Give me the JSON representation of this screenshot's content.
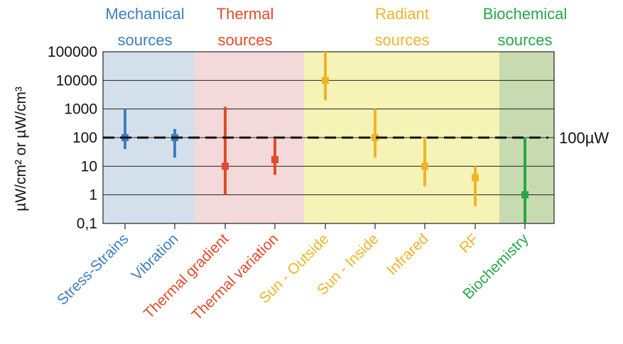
{
  "chart_data": {
    "type": "range",
    "ylabel": "µW/cm² or µW/cm³",
    "yscale": "log",
    "ylim": [
      0.1,
      100000
    ],
    "y_ticks": [
      "100000",
      "10000",
      "1000",
      "100",
      "10",
      "1",
      "0,1"
    ],
    "reference_line": {
      "value": 100,
      "label": "100µW"
    },
    "groups": [
      {
        "key": "mechanical",
        "label_lines": [
          "Mechanical",
          "sources"
        ],
        "color": "#3d7fc1",
        "background": "#d3e0ec"
      },
      {
        "key": "thermal",
        "label_lines": [
          "Thermal",
          "sources"
        ],
        "color": "#e14b2a",
        "background": "#f3d9d9"
      },
      {
        "key": "radiant",
        "label_lines": [
          "Radiant",
          "sources"
        ],
        "color": "#f0b429",
        "background": "#f5f3b6"
      },
      {
        "key": "biochemical",
        "label_lines": [
          "Biochemical",
          "sources"
        ],
        "color": "#27a64a",
        "background": "#c8dbb0"
      }
    ],
    "items": [
      {
        "label": "Stress-Strains",
        "group": "mechanical",
        "low": 40,
        "typical": 100,
        "high": 1000
      },
      {
        "label": "Vibration",
        "group": "mechanical",
        "low": 20,
        "typical": 100,
        "high": 200
      },
      {
        "label": "Thermal gradient",
        "group": "thermal",
        "low": 1,
        "typical": 10,
        "high": 1200
      },
      {
        "label": "Thermal variation",
        "group": "thermal",
        "low": 5,
        "typical": 17,
        "high": 90
      },
      {
        "label": "Sun - Outside",
        "group": "radiant",
        "low": 2000,
        "typical": 10000,
        "high": 100000
      },
      {
        "label": "Sun - Inside",
        "group": "radiant",
        "low": 20,
        "typical": 100,
        "high": 1000
      },
      {
        "label": "Infrared",
        "group": "radiant",
        "low": 2,
        "typical": 10,
        "high": 100
      },
      {
        "label": "RF",
        "group": "radiant",
        "low": 0.4,
        "typical": 4,
        "high": 10
      },
      {
        "label": "Biochemistry",
        "group": "biochemical",
        "low": 0.1,
        "typical": 1,
        "high": 100
      }
    ]
  }
}
